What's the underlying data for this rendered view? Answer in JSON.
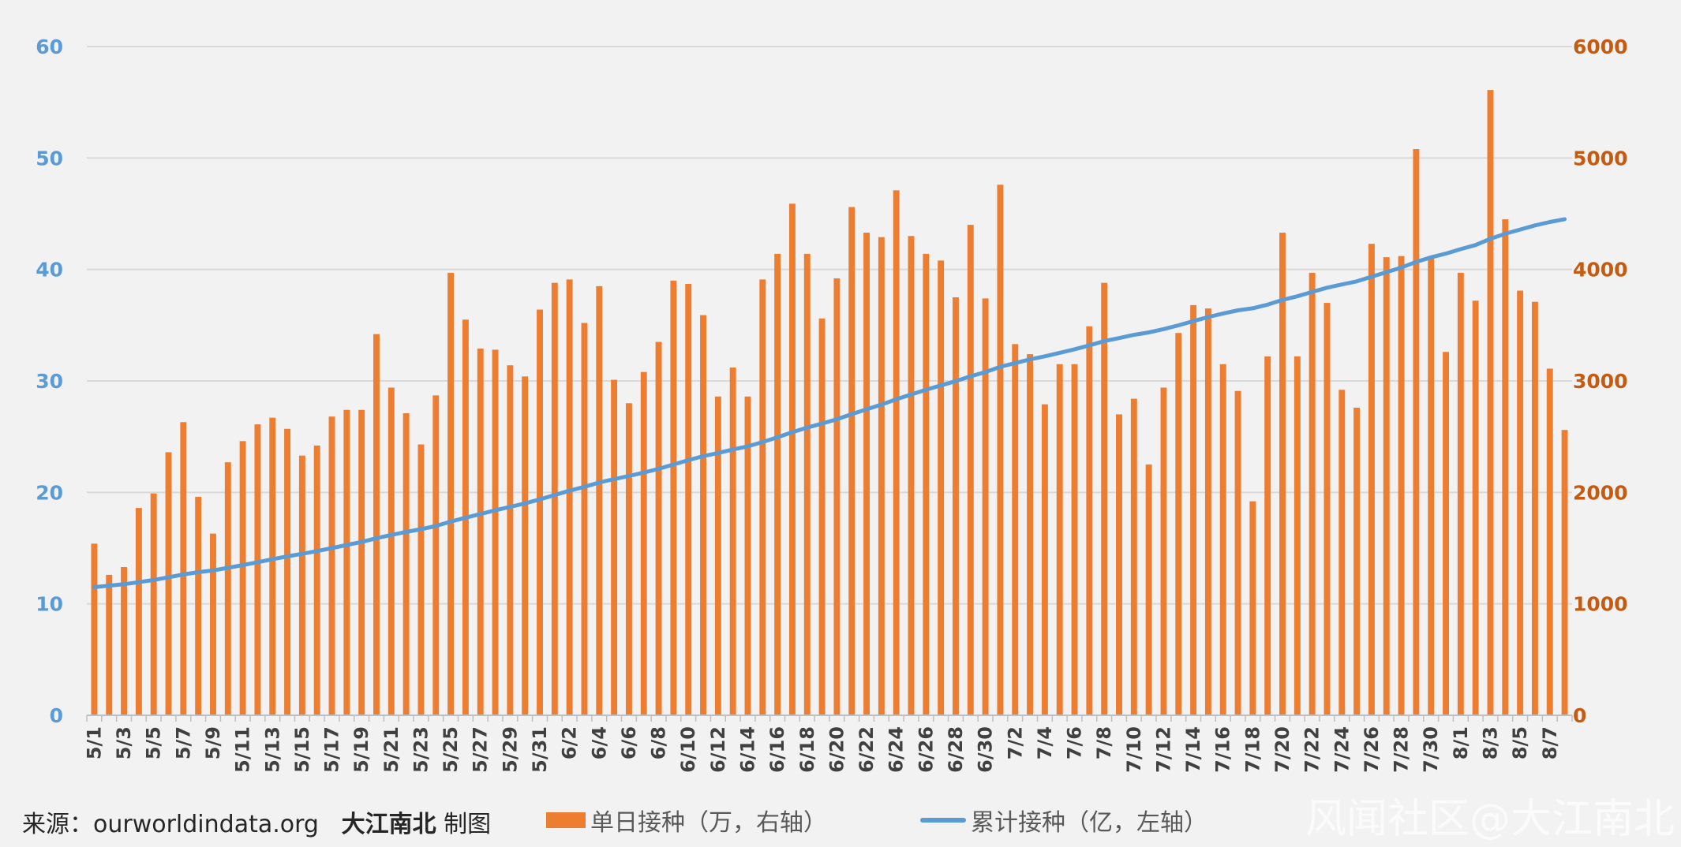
{
  "chart_data": {
    "type": "bar",
    "left_axis": {
      "ticks": [
        "0",
        "10",
        "20",
        "30",
        "40",
        "50",
        "60"
      ],
      "ylim": [
        0,
        60
      ],
      "color": "#5b9bd5"
    },
    "right_axis": {
      "ticks": [
        "0",
        "1000",
        "2000",
        "3000",
        "4000",
        "5000",
        "6000"
      ],
      "ylim": [
        0,
        6000
      ],
      "color": "#c55a11"
    },
    "grid": true,
    "legend_position": "bottom",
    "x": [
      "5/1",
      "5/2",
      "5/3",
      "5/4",
      "5/5",
      "5/6",
      "5/7",
      "5/8",
      "5/9",
      "5/10",
      "5/11",
      "5/12",
      "5/13",
      "5/14",
      "5/15",
      "5/16",
      "5/17",
      "5/18",
      "5/19",
      "5/20",
      "5/21",
      "5/22",
      "5/23",
      "5/24",
      "5/25",
      "5/26",
      "5/27",
      "5/28",
      "5/29",
      "5/30",
      "5/31",
      "6/1",
      "6/2",
      "6/3",
      "6/4",
      "6/5",
      "6/6",
      "6/7",
      "6/8",
      "6/9",
      "6/10",
      "6/11",
      "6/12",
      "6/13",
      "6/14",
      "6/15",
      "6/16",
      "6/17",
      "6/18",
      "6/19",
      "6/20",
      "6/21",
      "6/22",
      "6/23",
      "6/24",
      "6/25",
      "6/26",
      "6/27",
      "6/28",
      "6/29",
      "6/30",
      "7/1",
      "7/2",
      "7/3",
      "7/4",
      "7/5",
      "7/6",
      "7/7",
      "7/8",
      "7/9",
      "7/10",
      "7/11",
      "7/12",
      "7/13",
      "7/14",
      "7/15",
      "7/16",
      "7/17",
      "7/18",
      "7/19",
      "7/20",
      "7/21",
      "7/22",
      "7/23",
      "7/24",
      "7/25",
      "7/26",
      "7/27",
      "7/28",
      "7/29",
      "7/30",
      "7/31",
      "8/1",
      "8/2",
      "8/3",
      "8/4",
      "8/5",
      "8/6",
      "8/7",
      "8/8"
    ],
    "x_tick_labels": [
      "5/1",
      "5/3",
      "5/5",
      "5/7",
      "5/9",
      "5/11",
      "5/13",
      "5/15",
      "5/17",
      "5/19",
      "5/21",
      "5/23",
      "5/25",
      "5/27",
      "5/29",
      "5/31",
      "6/2",
      "6/4",
      "6/6",
      "6/8",
      "6/10",
      "6/12",
      "6/14",
      "6/16",
      "6/18",
      "6/20",
      "6/22",
      "6/24",
      "6/26",
      "6/28",
      "6/30",
      "7/2",
      "7/4",
      "7/6",
      "7/8",
      "7/10",
      "7/12",
      "7/14",
      "7/16",
      "7/18",
      "7/20",
      "7/22",
      "7/24",
      "7/26",
      "7/28",
      "7/30",
      "8/1",
      "8/3",
      "8/5",
      "8/7"
    ],
    "series": [
      {
        "name": "单日接种（万，右轴）",
        "type": "bar",
        "axis": "right",
        "color": "#ed7d31",
        "values": [
          1540,
          1260,
          1330,
          1860,
          1990,
          2360,
          2630,
          1960,
          1630,
          2270,
          2460,
          2610,
          2670,
          2570,
          2330,
          2420,
          2680,
          2740,
          2740,
          3420,
          2940,
          2710,
          2430,
          2870,
          3970,
          3550,
          3290,
          3280,
          3140,
          3040,
          3640,
          3880,
          3910,
          3520,
          3850,
          3010,
          2800,
          3080,
          3350,
          3900,
          3870,
          3590,
          2860,
          3120,
          2860,
          3910,
          4140,
          4590,
          4140,
          3560,
          3920,
          4560,
          4330,
          4290,
          4710,
          4300,
          4140,
          4080,
          3750,
          4400,
          3740,
          4760,
          3330,
          3240,
          2790,
          3150,
          3150,
          3490,
          3880,
          2700,
          2840,
          2250,
          2940,
          3430,
          3680,
          3650,
          3150,
          2910,
          1920,
          3220,
          4330,
          3220,
          3970,
          3700,
          2920,
          2760,
          4230,
          4110,
          4120,
          5080,
          4120,
          3260,
          3970,
          3720,
          5610,
          4450,
          3810,
          3710,
          3110,
          2560
        ]
      },
      {
        "name": "累计接种（亿，左轴）",
        "type": "line",
        "axis": "left",
        "color": "#5b9bd5",
        "values": [
          11.5,
          11.63,
          11.76,
          11.94,
          12.14,
          12.38,
          12.64,
          12.84,
          13.0,
          13.23,
          13.47,
          13.73,
          14.0,
          14.26,
          14.49,
          14.73,
          15.0,
          15.28,
          15.55,
          15.89,
          16.18,
          16.45,
          16.7,
          16.98,
          17.38,
          17.73,
          18.06,
          18.39,
          18.7,
          19.01,
          19.37,
          19.76,
          20.15,
          20.5,
          20.89,
          21.19,
          21.47,
          21.78,
          22.11,
          22.5,
          22.89,
          23.25,
          23.53,
          23.85,
          24.13,
          24.52,
          24.94,
          25.4,
          25.81,
          26.17,
          26.56,
          27.02,
          27.45,
          27.88,
          28.35,
          28.78,
          29.2,
          29.6,
          29.98,
          30.42,
          30.79,
          31.27,
          31.6,
          31.93,
          32.21,
          32.52,
          32.84,
          33.19,
          33.57,
          33.84,
          34.13,
          34.35,
          34.65,
          34.99,
          35.36,
          35.73,
          36.04,
          36.33,
          36.52,
          36.84,
          37.27,
          37.59,
          37.99,
          38.36,
          38.65,
          38.93,
          39.35,
          39.76,
          40.17,
          40.68,
          41.09,
          41.42,
          41.82,
          42.19,
          42.75,
          43.2,
          43.58,
          43.95,
          44.26,
          44.51
        ]
      }
    ]
  },
  "footer": {
    "source_prefix": "来源：",
    "source_site": "ourworldindata.org",
    "author": "大江南北",
    "author_suffix": "制图"
  },
  "legend": {
    "bar_label": "单日接种（万，右轴）",
    "line_label": "累计接种（亿，左轴）"
  },
  "watermark": "风闻社区@大江南北"
}
